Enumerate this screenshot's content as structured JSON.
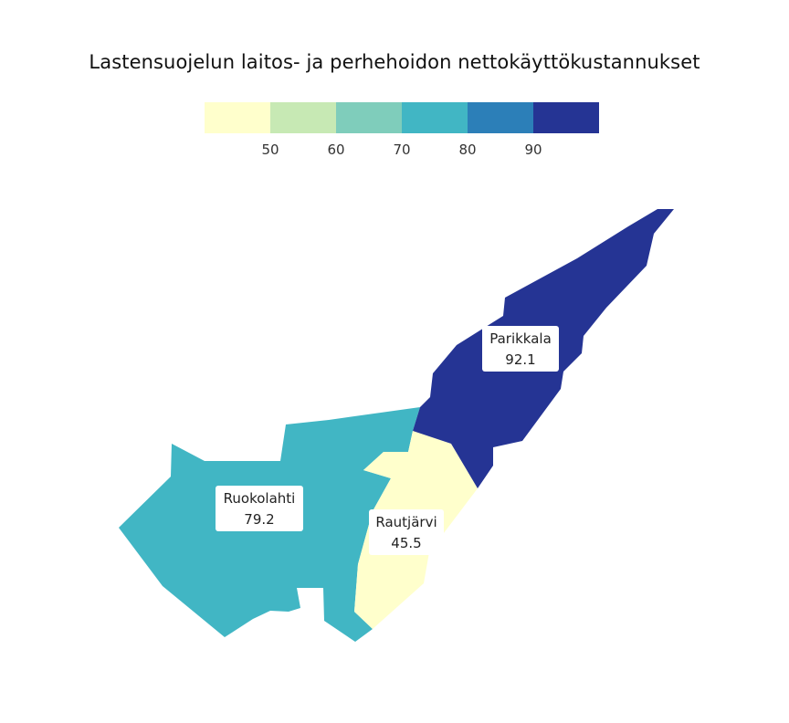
{
  "title": "Lastensuojelun laitos- ja perhehoidon nettokäyttökustannukset",
  "legend": {
    "colors": [
      "#ffffcc",
      "#c7e9b4",
      "#7fcdbb",
      "#41b6c4",
      "#2c7fb8",
      "#253494"
    ],
    "ticks": [
      "50",
      "60",
      "70",
      "80",
      "90"
    ]
  },
  "regions": [
    {
      "name": "Parikkala",
      "value": "92.1",
      "color": "#253494"
    },
    {
      "name": "Ruokolahti",
      "value": "79.2",
      "color": "#41b6c4"
    },
    {
      "name": "Rautjärvi",
      "value": "45.5",
      "color": "#ffffcc"
    }
  ]
}
